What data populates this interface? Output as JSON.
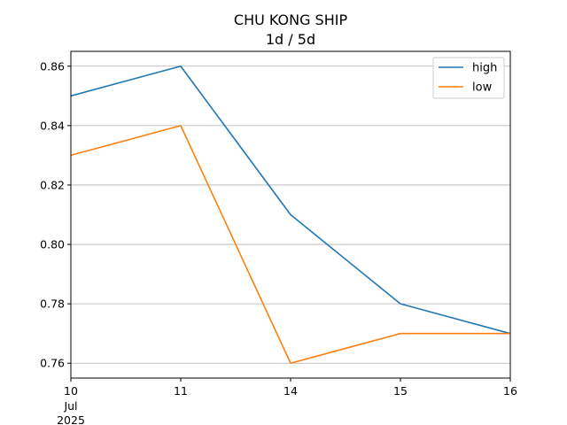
{
  "chart_data": {
    "type": "line",
    "title": "CHU KONG SHIP",
    "subtitle": "1d / 5d",
    "x": [
      "2025-07-10",
      "2025-07-11",
      "2025-07-14",
      "2025-07-15",
      "2025-07-16"
    ],
    "x_tick_labels": [
      "10",
      "11",
      "14",
      "15",
      "16"
    ],
    "x_tick_sublabels": [
      "Jul",
      "2025"
    ],
    "series": [
      {
        "name": "high",
        "color": "#1f77b4",
        "values": [
          0.85,
          0.86,
          0.81,
          0.78,
          0.77
        ]
      },
      {
        "name": "low",
        "color": "#ff7f0e",
        "values": [
          0.83,
          0.84,
          0.76,
          0.77,
          0.77
        ]
      }
    ],
    "ylim": [
      0.755,
      0.865
    ],
    "y_ticks": [
      "0.76",
      "0.78",
      "0.80",
      "0.82",
      "0.84",
      "0.86"
    ],
    "grid": "horizontal",
    "legend": "top-right"
  }
}
